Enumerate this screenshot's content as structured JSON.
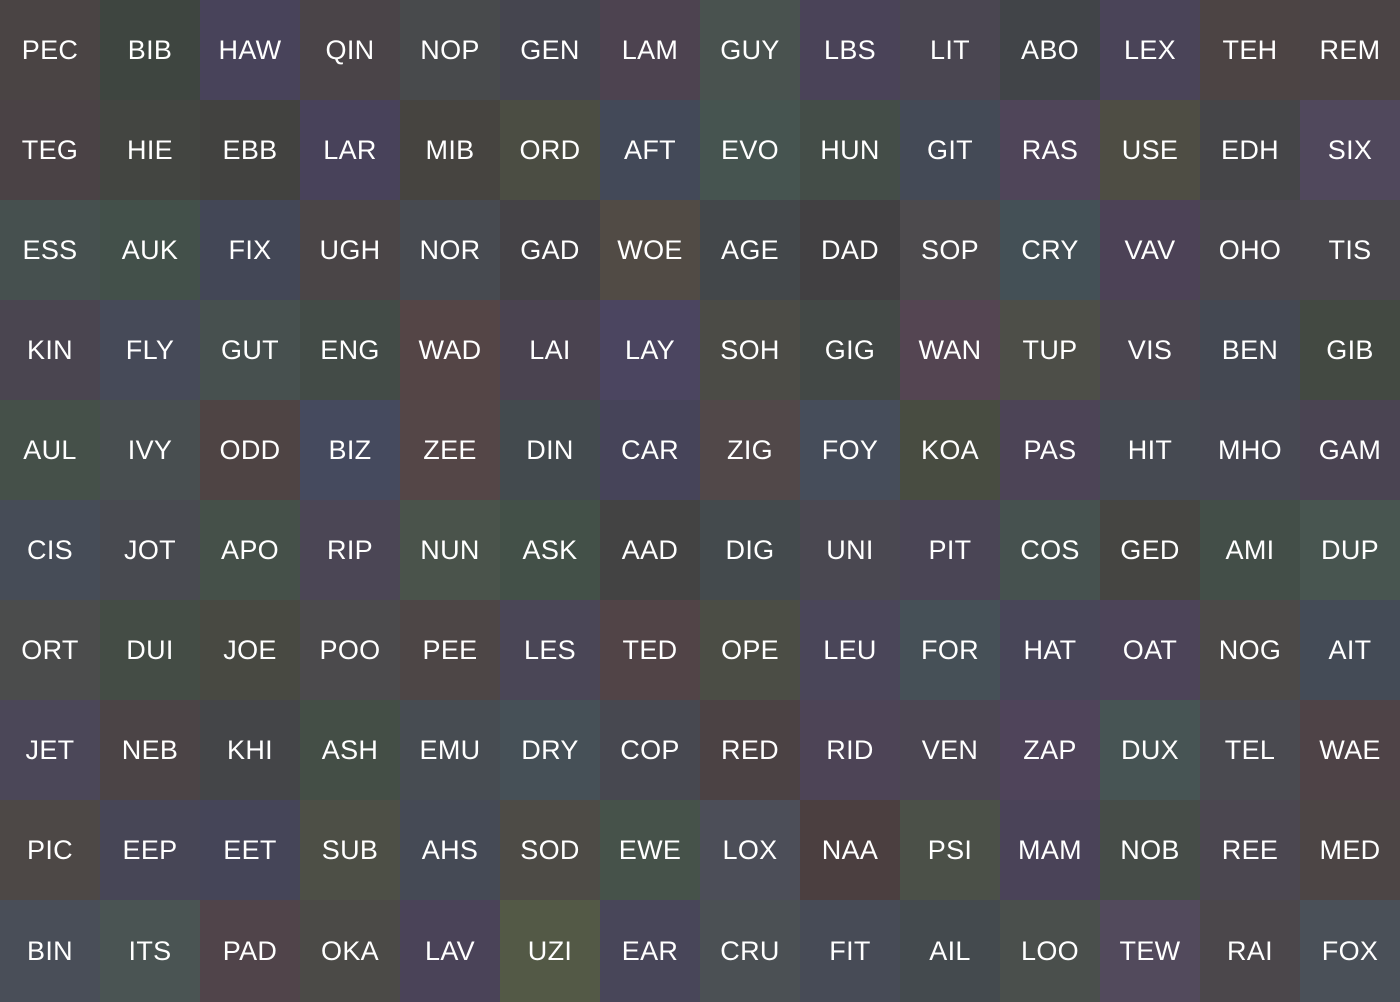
{
  "grid": {
    "columns": 14,
    "text_color": "#ffffff",
    "rows": [
      [
        {
          "label": "PEC",
          "color": "#4a4444"
        },
        {
          "label": "BIB",
          "color": "#3e4540"
        },
        {
          "label": "HAW",
          "color": "#48435a"
        },
        {
          "label": "QIN",
          "color": "#4a4448"
        },
        {
          "label": "NOP",
          "color": "#484a4c"
        },
        {
          "label": "GEN",
          "color": "#45454f"
        },
        {
          "label": "LAM",
          "color": "#4d4350"
        },
        {
          "label": "GUY",
          "color": "#49524f"
        },
        {
          "label": "LBS",
          "color": "#4a4358"
        },
        {
          "label": "LIT",
          "color": "#4a4651"
        },
        {
          "label": "ABO",
          "color": "#414448"
        },
        {
          "label": "LEX",
          "color": "#4a4458"
        },
        {
          "label": "TEH",
          "color": "#4c4444"
        },
        {
          "label": "REM",
          "color": "#4b4445"
        }
      ],
      [
        {
          "label": "TEG",
          "color": "#4a4245"
        },
        {
          "label": "HIE",
          "color": "#434541"
        },
        {
          "label": "EBB",
          "color": "#424240"
        },
        {
          "label": "LAR",
          "color": "#48425a"
        },
        {
          "label": "MIB",
          "color": "#464440"
        },
        {
          "label": "ORD",
          "color": "#4b4d43"
        },
        {
          "label": "AFT",
          "color": "#434958"
        },
        {
          "label": "EVO",
          "color": "#465450"
        },
        {
          "label": "HUN",
          "color": "#444d48"
        },
        {
          "label": "GIT",
          "color": "#444a56"
        },
        {
          "label": "RAS",
          "color": "#4f4559"
        },
        {
          "label": "USE",
          "color": "#4e4d44"
        },
        {
          "label": "EDH",
          "color": "#454548"
        },
        {
          "label": "SIX",
          "color": "#50485c"
        }
      ],
      [
        {
          "label": "ESS",
          "color": "#46504f"
        },
        {
          "label": "AUK",
          "color": "#43504a"
        },
        {
          "label": "FIX",
          "color": "#434756"
        },
        {
          "label": "UGH",
          "color": "#4a4547"
        },
        {
          "label": "NOR",
          "color": "#474a50"
        },
        {
          "label": "GAD",
          "color": "#444246"
        },
        {
          "label": "WOE",
          "color": "#514b45"
        },
        {
          "label": "AGE",
          "color": "#43474a"
        },
        {
          "label": "DAD",
          "color": "#414042"
        },
        {
          "label": "SOP",
          "color": "#4c4a4d"
        },
        {
          "label": "CRY",
          "color": "#445056"
        },
        {
          "label": "VAV",
          "color": "#4c4256"
        },
        {
          "label": "OHO",
          "color": "#49474d"
        },
        {
          "label": "TIS",
          "color": "#4a484d"
        }
      ],
      [
        {
          "label": "KIN",
          "color": "#4a4550"
        },
        {
          "label": "FLY",
          "color": "#464a58"
        },
        {
          "label": "GUT",
          "color": "#47504f"
        },
        {
          "label": "ENG",
          "color": "#434b47"
        },
        {
          "label": "WAD",
          "color": "#544546"
        },
        {
          "label": "LAI",
          "color": "#4a4350"
        },
        {
          "label": "LAY",
          "color": "#4b4560"
        },
        {
          "label": "SOH",
          "color": "#4b4b46"
        },
        {
          "label": "GIG",
          "color": "#434846"
        },
        {
          "label": "WAN",
          "color": "#544552"
        },
        {
          "label": "TUP",
          "color": "#4d4e48"
        },
        {
          "label": "VIS",
          "color": "#4b4650"
        },
        {
          "label": "BEN",
          "color": "#444852"
        },
        {
          "label": "GIB",
          "color": "#434942"
        }
      ],
      [
        {
          "label": "AUL",
          "color": "#455049"
        },
        {
          "label": "IVY",
          "color": "#484e50"
        },
        {
          "label": "ODD",
          "color": "#4e4444"
        },
        {
          "label": "BIZ",
          "color": "#454a5e"
        },
        {
          "label": "ZEE",
          "color": "#544647"
        },
        {
          "label": "DIN",
          "color": "#434a4e"
        },
        {
          "label": "CAR",
          "color": "#464459"
        },
        {
          "label": "ZIG",
          "color": "#514849"
        },
        {
          "label": "FOY",
          "color": "#464d5a"
        },
        {
          "label": "KOA",
          "color": "#484c41"
        },
        {
          "label": "PAS",
          "color": "#4c4456"
        },
        {
          "label": "HIT",
          "color": "#464a52"
        },
        {
          "label": "MHO",
          "color": "#474852"
        },
        {
          "label": "GAM",
          "color": "#4a4452"
        }
      ],
      [
        {
          "label": "CIS",
          "color": "#464c57"
        },
        {
          "label": "JOT",
          "color": "#484a50"
        },
        {
          "label": "APO",
          "color": "#455049"
        },
        {
          "label": "RIP",
          "color": "#4b4655"
        },
        {
          "label": "NUN",
          "color": "#4a534b"
        },
        {
          "label": "ASK",
          "color": "#435048"
        },
        {
          "label": "AAD",
          "color": "#434343"
        },
        {
          "label": "DIG",
          "color": "#444a4d"
        },
        {
          "label": "UNI",
          "color": "#4a4851"
        },
        {
          "label": "PIT",
          "color": "#4a4555"
        },
        {
          "label": "COS",
          "color": "#46514f"
        },
        {
          "label": "GED",
          "color": "#454542"
        },
        {
          "label": "AMI",
          "color": "#434e48"
        },
        {
          "label": "DUP",
          "color": "#485550"
        }
      ],
      [
        {
          "label": "ORT",
          "color": "#4b4c4c"
        },
        {
          "label": "DUI",
          "color": "#444c45"
        },
        {
          "label": "JOE",
          "color": "#484942"
        },
        {
          "label": "POO",
          "color": "#4b4a4c"
        },
        {
          "label": "PEE",
          "color": "#4d4646"
        },
        {
          "label": "LES",
          "color": "#4a4656"
        },
        {
          "label": "TED",
          "color": "#514447"
        },
        {
          "label": "OPE",
          "color": "#4b4d45"
        },
        {
          "label": "LEU",
          "color": "#4a4659"
        },
        {
          "label": "FOR",
          "color": "#465057"
        },
        {
          "label": "HAT",
          "color": "#484658"
        },
        {
          "label": "OAT",
          "color": "#4c4458"
        },
        {
          "label": "NOG",
          "color": "#4b4948"
        },
        {
          "label": "AIT",
          "color": "#444b56"
        }
      ],
      [
        {
          "label": "JET",
          "color": "#4b4758"
        },
        {
          "label": "NEB",
          "color": "#4b4446"
        },
        {
          "label": "KHI",
          "color": "#444548"
        },
        {
          "label": "ASH",
          "color": "#444e46"
        },
        {
          "label": "EMU",
          "color": "#474c52"
        },
        {
          "label": "DRY",
          "color": "#465057"
        },
        {
          "label": "COP",
          "color": "#474850"
        },
        {
          "label": "RED",
          "color": "#4b4244"
        },
        {
          "label": "RID",
          "color": "#4d4456"
        },
        {
          "label": "VEN",
          "color": "#4b4652"
        },
        {
          "label": "ZAP",
          "color": "#4f445a"
        },
        {
          "label": "DUX",
          "color": "#475454"
        },
        {
          "label": "TEL",
          "color": "#4a4a50"
        },
        {
          "label": "WAE",
          "color": "#4e4347"
        }
      ],
      [
        {
          "label": "PIC",
          "color": "#4d4846"
        },
        {
          "label": "EEP",
          "color": "#474656"
        },
        {
          "label": "EET",
          "color": "#454558"
        },
        {
          "label": "SUB",
          "color": "#4d4f46"
        },
        {
          "label": "AHS",
          "color": "#454a55"
        },
        {
          "label": "SOD",
          "color": "#4d4b46"
        },
        {
          "label": "EWE",
          "color": "#46524a"
        },
        {
          "label": "LOX",
          "color": "#4c4e58"
        },
        {
          "label": "NAA",
          "color": "#4b3f40"
        },
        {
          "label": "PSI",
          "color": "#4b5048"
        },
        {
          "label": "MAM",
          "color": "#4a4358"
        },
        {
          "label": "NOB",
          "color": "#464c48"
        },
        {
          "label": "REE",
          "color": "#4b4750"
        },
        {
          "label": "MED",
          "color": "#4c4545"
        }
      ],
      [
        {
          "label": "BIN",
          "color": "#494e58"
        },
        {
          "label": "ITS",
          "color": "#4a5453"
        },
        {
          "label": "PAD",
          "color": "#50444a"
        },
        {
          "label": "OKA",
          "color": "#4b4a47"
        },
        {
          "label": "LAV",
          "color": "#4a4358"
        },
        {
          "label": "UZI",
          "color": "#535946"
        },
        {
          "label": "EAR",
          "color": "#484659"
        },
        {
          "label": "CRU",
          "color": "#4b5054"
        },
        {
          "label": "FIT",
          "color": "#474b56"
        },
        {
          "label": "AIL",
          "color": "#444a4e"
        },
        {
          "label": "LOO",
          "color": "#4a4f4c"
        },
        {
          "label": "TEW",
          "color": "#524a5c"
        },
        {
          "label": "RAI",
          "color": "#4b474b"
        },
        {
          "label": "FOX",
          "color": "#4a5058"
        }
      ]
    ]
  }
}
